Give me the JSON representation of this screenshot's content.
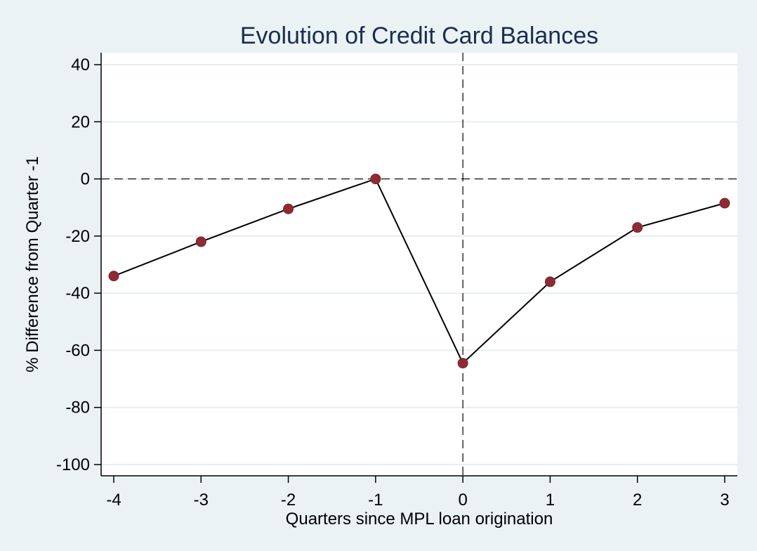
{
  "chart_data": {
    "type": "line",
    "title": "Evolution of Credit Card Balances",
    "xlabel": "Quarters since MPL loan origination",
    "ylabel": "% Difference from Quarter -1",
    "x": [
      -4,
      -3,
      -2,
      -1,
      0,
      1,
      2,
      3
    ],
    "series": [
      {
        "values": [
          -34,
          -22,
          -10.5,
          0,
          -64.5,
          -36,
          -17,
          -8.5
        ]
      }
    ],
    "xlim": [
      -4,
      3
    ],
    "ylim": [
      -100,
      40
    ],
    "xticks": [
      -4,
      -3,
      -2,
      -1,
      0,
      1,
      2,
      3
    ],
    "yticks": [
      -100,
      -80,
      -60,
      -40,
      -20,
      0,
      20,
      40
    ],
    "reference_lines": {
      "x": 0,
      "y": 0,
      "style": "dashed"
    },
    "grid": true,
    "colors": {
      "marker": "#8e2b34",
      "line": "#000000",
      "plot_background": "#ffffff",
      "figure_background": "#eaf2f3",
      "title": "#1a2d52"
    }
  }
}
